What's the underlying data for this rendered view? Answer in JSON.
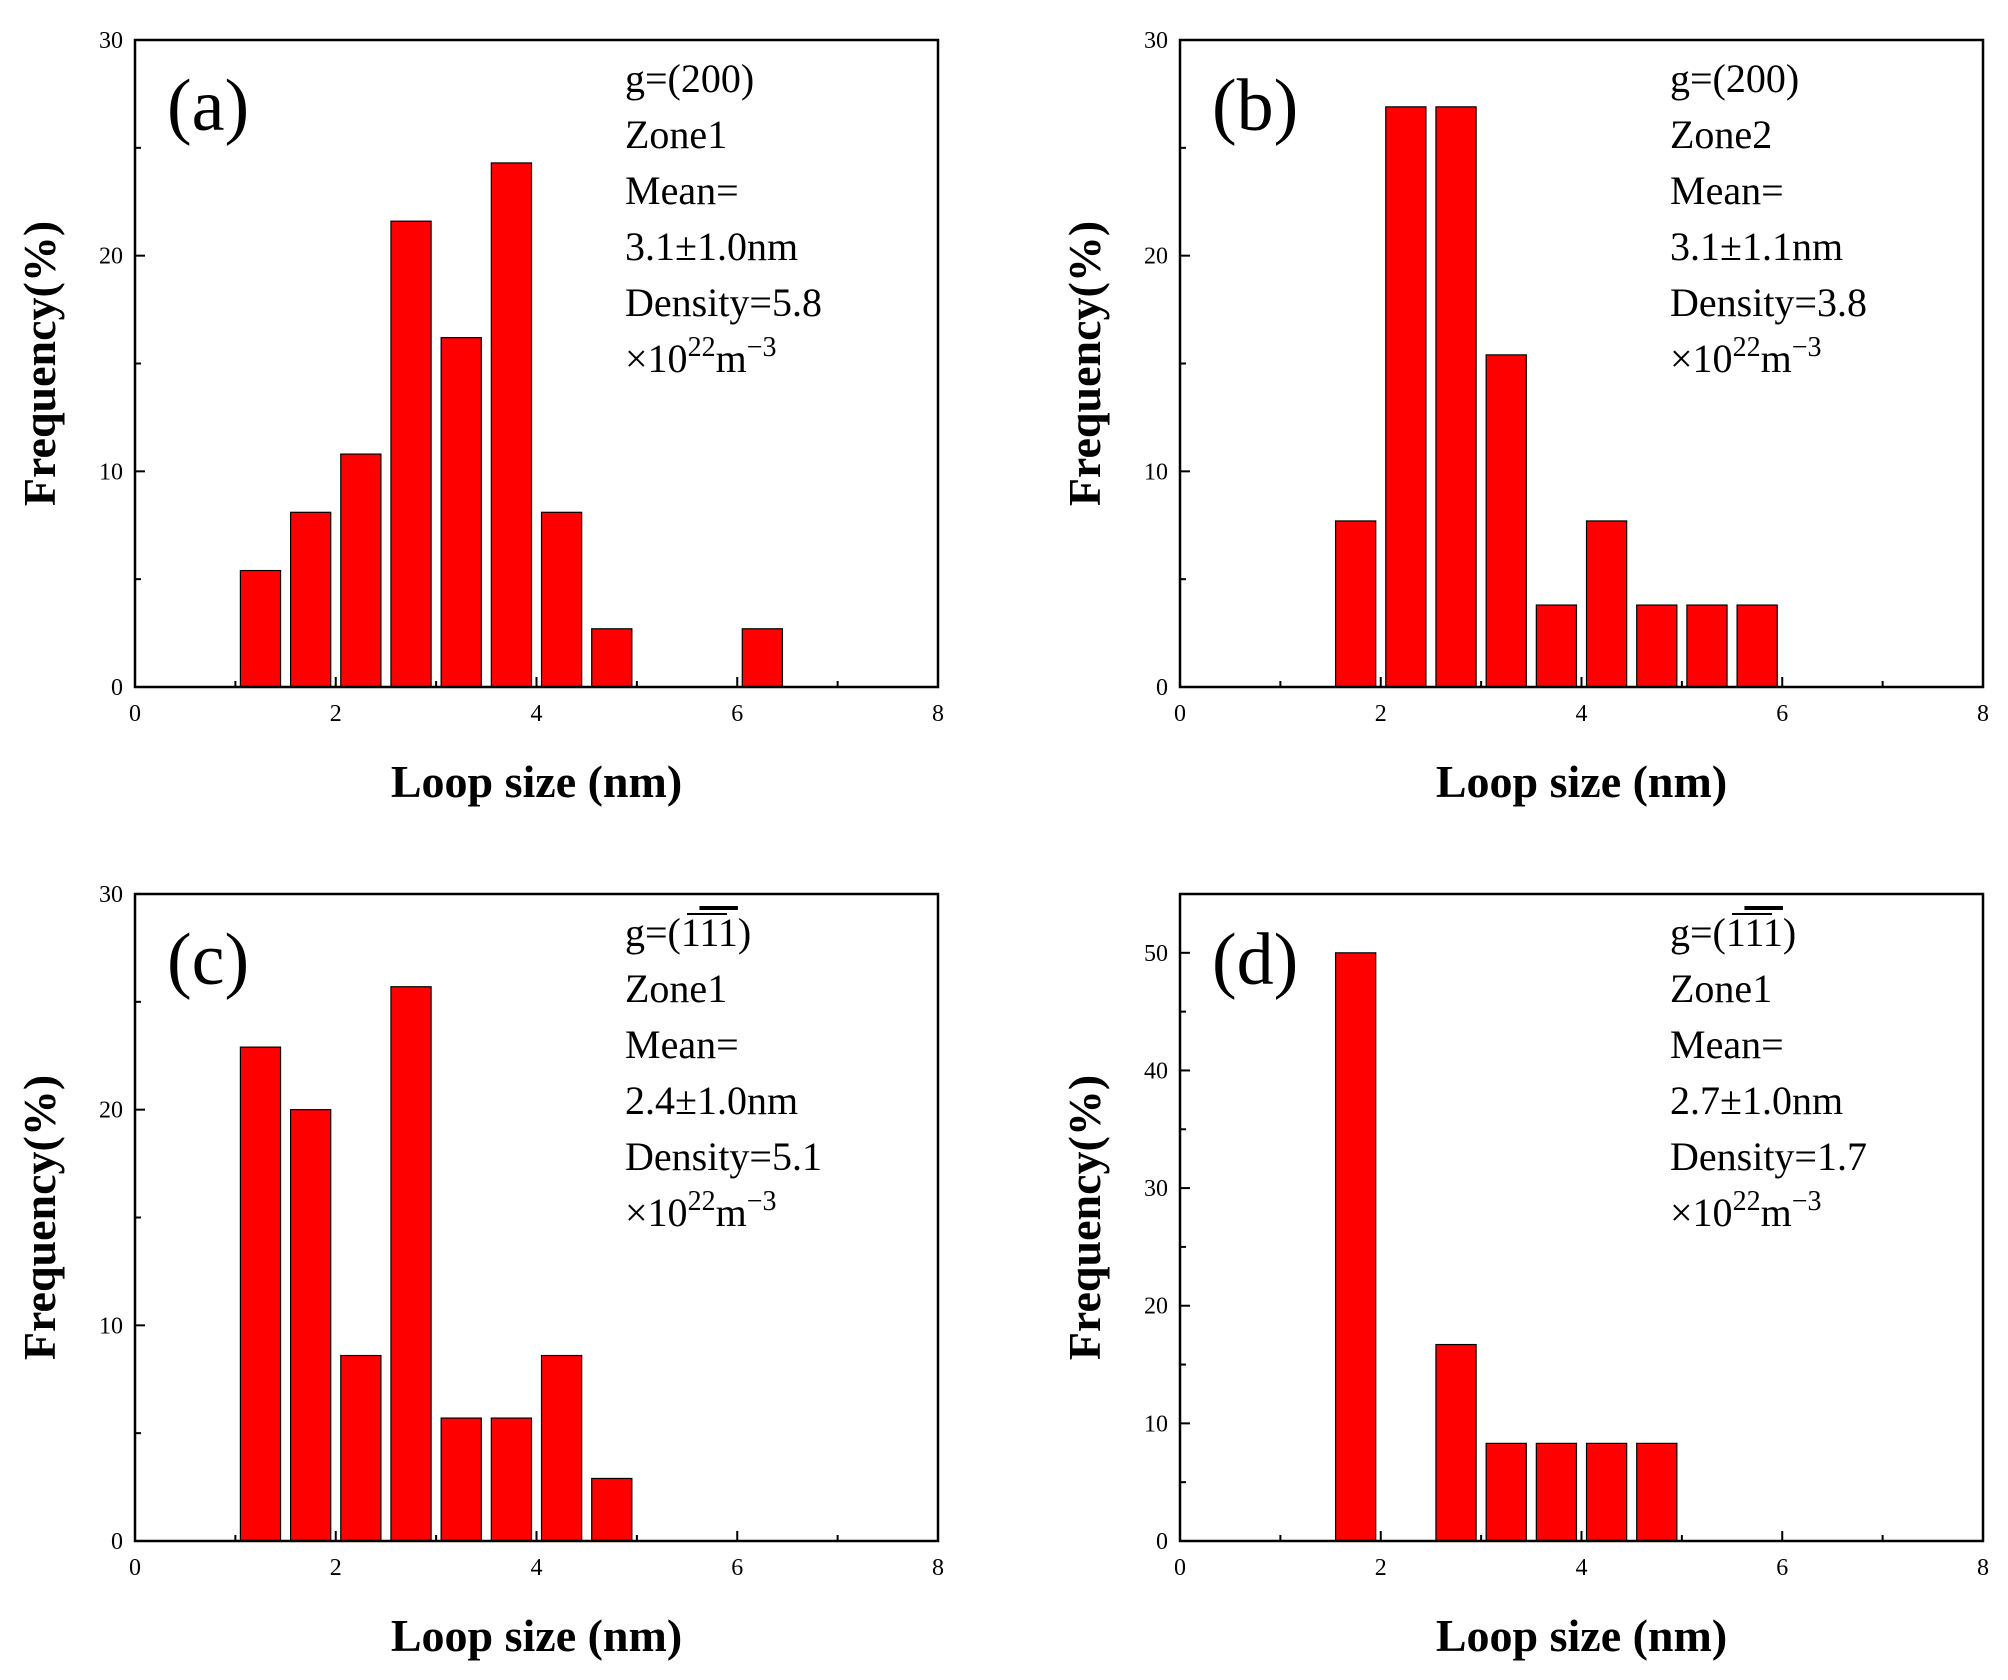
{
  "chart_data": [
    {
      "type": "bar",
      "letter": "(a)",
      "annotation": {
        "g": "g=(200)",
        "zone": "Zone1",
        "mean_label": "Mean=",
        "mean_value": "3.1±1.0nm",
        "density": "Density=5.8",
        "units_prefix": "×10",
        "units_exp1": "22",
        "units_mid": "m",
        "units_exp2": "−3"
      },
      "xlabel": "Loop size (nm)",
      "ylabel": "Frequency(%)",
      "xlim": [
        0,
        8
      ],
      "ylim": [
        0,
        30
      ],
      "xticks": [
        0,
        2,
        4,
        6,
        8
      ],
      "yticks": [
        0,
        10,
        20,
        30
      ],
      "bar_width": 0.4,
      "x": [
        1.25,
        1.75,
        2.25,
        2.75,
        3.25,
        3.75,
        4.25,
        4.75,
        6.25
      ],
      "values": [
        5.4,
        8.1,
        10.8,
        21.6,
        16.2,
        24.3,
        8.1,
        2.7,
        2.7
      ]
    },
    {
      "type": "bar",
      "letter": "(b)",
      "annotation": {
        "g": "g=(200)",
        "zone": "Zone2",
        "mean_label": "Mean=",
        "mean_value": "3.1±1.1nm",
        "density": "Density=3.8",
        "units_prefix": "×10",
        "units_exp1": "22",
        "units_mid": "m",
        "units_exp2": "−3"
      },
      "xlabel": "Loop size (nm)",
      "ylabel": "Frequency(%)",
      "xlim": [
        0,
        8
      ],
      "ylim": [
        0,
        30
      ],
      "xticks": [
        0,
        2,
        4,
        6,
        8
      ],
      "yticks": [
        0,
        10,
        20,
        30
      ],
      "bar_width": 0.4,
      "x": [
        1.75,
        2.25,
        2.75,
        3.25,
        3.75,
        4.25,
        4.75,
        5.25,
        5.75
      ],
      "values": [
        7.7,
        26.9,
        26.9,
        15.4,
        3.8,
        7.7,
        3.8,
        3.8,
        3.8
      ]
    },
    {
      "type": "bar",
      "letter": "(c)",
      "annotation": {
        "g_prefix": "g=(1",
        "g_bar": "11",
        "g_suffix": ")",
        "zone": "Zone1",
        "mean_label": "Mean=",
        "mean_value": "2.4±1.0nm",
        "density": "Density=5.1",
        "units_prefix": "×10",
        "units_exp1": "22",
        "units_mid": "m",
        "units_exp2": "−3"
      },
      "xlabel": "Loop size (nm)",
      "ylabel": "Frequency(%)",
      "xlim": [
        0,
        8
      ],
      "ylim": [
        0,
        30
      ],
      "xticks": [
        0,
        2,
        4,
        6,
        8
      ],
      "yticks": [
        0,
        10,
        20,
        30
      ],
      "bar_width": 0.4,
      "x": [
        1.25,
        1.75,
        2.25,
        2.75,
        3.25,
        3.75,
        4.25,
        4.75
      ],
      "values": [
        22.9,
        20.0,
        8.6,
        25.7,
        5.7,
        5.7,
        8.6,
        2.9
      ]
    },
    {
      "type": "bar",
      "letter": "(d)",
      "annotation": {
        "g_prefix": "g=(1",
        "g_bar": "11",
        "g_suffix": ")",
        "zone": "Zone1",
        "mean_label": "Mean=",
        "mean_value": "2.7±1.0nm",
        "density": "Density=1.7",
        "units_prefix": "×10",
        "units_exp1": "22",
        "units_mid": "m",
        "units_exp2": "−3"
      },
      "xlabel": "Loop size (nm)",
      "ylabel": "Frequency(%)",
      "xlim": [
        0,
        8
      ],
      "ylim": [
        0,
        55
      ],
      "xticks": [
        0,
        2,
        4,
        6,
        8
      ],
      "yticks": [
        0,
        10,
        20,
        30,
        40,
        50
      ],
      "bar_width": 0.4,
      "x": [
        1.75,
        2.75,
        3.25,
        3.75,
        4.25,
        4.75
      ],
      "values": [
        50.0,
        16.7,
        8.3,
        8.3,
        8.3,
        8.3
      ]
    }
  ]
}
